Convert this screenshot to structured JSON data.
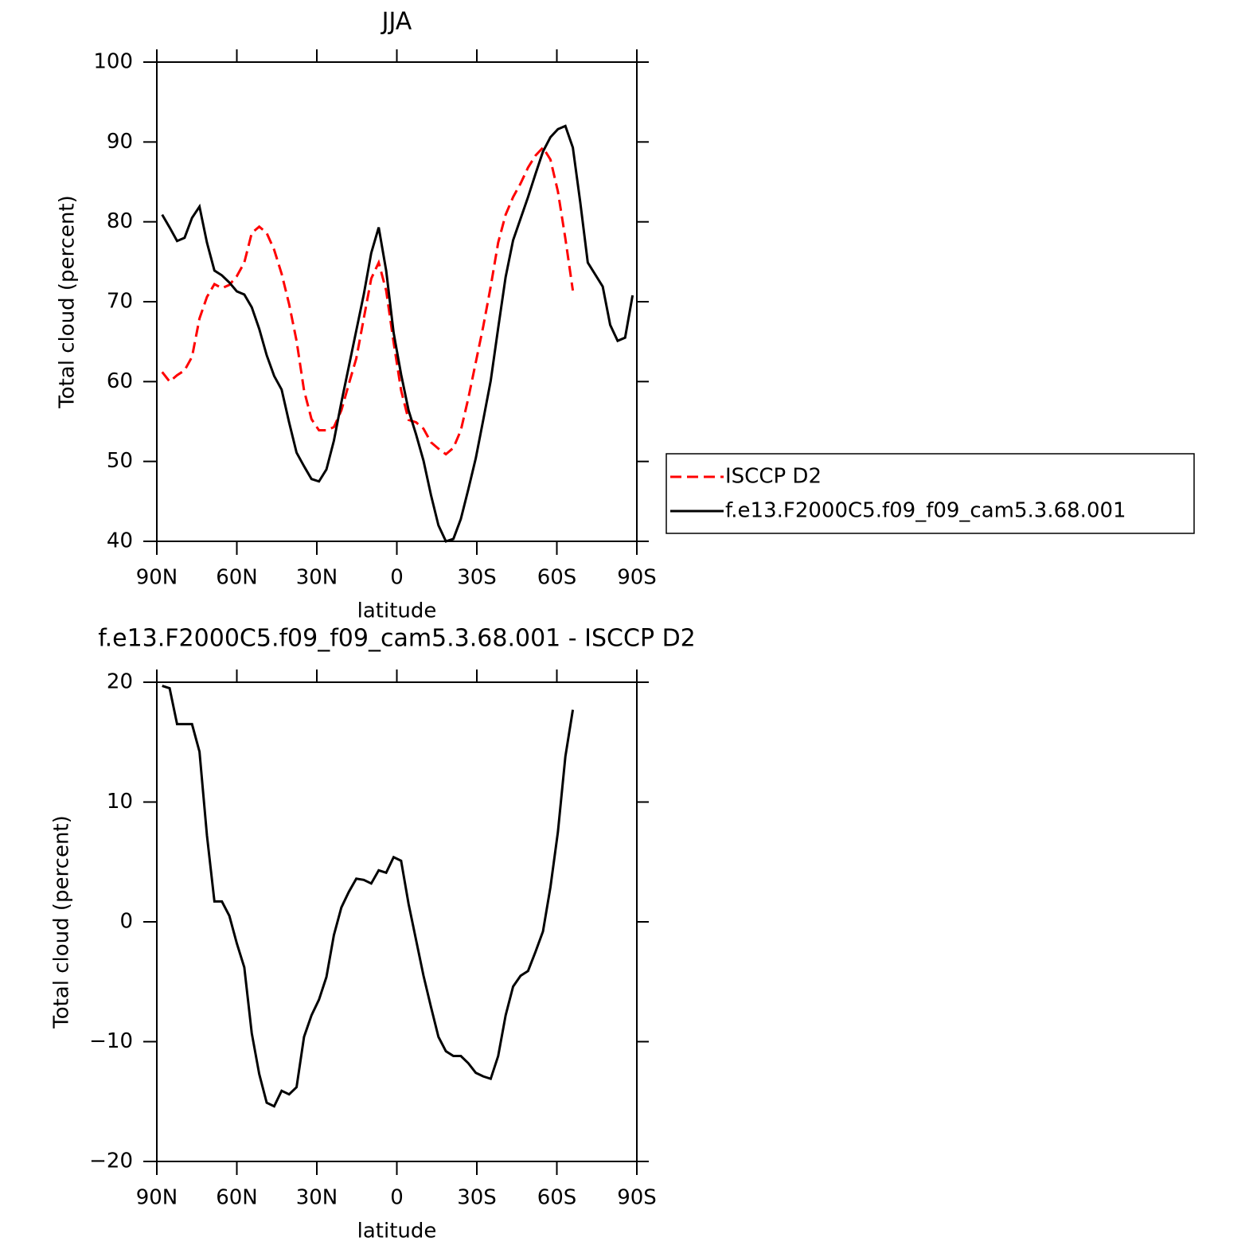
{
  "chart_data": [
    {
      "type": "line",
      "title": "JJA",
      "xlabel": "latitude",
      "ylabel": "Total cloud (percent)",
      "x": [
        88,
        85.2,
        82.4,
        79.6,
        76.8,
        74,
        71.2,
        68.4,
        65.6,
        62.8,
        60,
        57.2,
        54.4,
        51.6,
        48.8,
        46,
        43.2,
        40.4,
        37.6,
        34.8,
        32,
        29.2,
        26.4,
        23.6,
        20.8,
        18,
        15.2,
        12.4,
        9.6,
        6.8,
        4,
        1.2,
        -1.6,
        -4.4,
        -7.2,
        -10,
        -12.8,
        -15.6,
        -18.4,
        -21.2,
        -24,
        -26.8,
        -29.6,
        -32.4,
        -35.2,
        -38,
        -40.8,
        -43.6,
        -46.4,
        -49.2,
        -52,
        -54.8,
        -57.6,
        -60.4,
        -63.2,
        -66,
        -68.8,
        -71.6,
        -74.4,
        -77.2,
        -80,
        -82.8,
        -85.6,
        -88.4
      ],
      "xlim": [
        90,
        -90
      ],
      "xticks": [
        {
          "value": 90,
          "label": "90N"
        },
        {
          "value": 60,
          "label": "60N"
        },
        {
          "value": 30,
          "label": "30N"
        },
        0,
        {
          "value": -30,
          "label": "30S"
        },
        {
          "value": -60,
          "label": "60S"
        },
        {
          "value": -90,
          "label": "90S"
        }
      ],
      "ylim": [
        40,
        100
      ],
      "yticks": [
        40,
        50,
        60,
        70,
        80,
        90,
        100
      ],
      "legend": "right",
      "series": [
        {
          "name": "ISCCP D2",
          "color": "#ff0000",
          "dashed": true,
          "values": [
            61.2,
            60.0,
            60.8,
            61.4,
            63.1,
            67.9,
            70.6,
            72.2,
            71.7,
            72.1,
            73.2,
            74.9,
            78.6,
            79.4,
            78.6,
            76.5,
            73.5,
            69.7,
            65.1,
            58.9,
            55.3,
            53.9,
            53.9,
            54.3,
            56.4,
            59.7,
            62.9,
            67.9,
            72.9,
            74.9,
            71.4,
            64.9,
            58.9,
            55.2,
            54.9,
            54.1,
            52.4,
            51.6,
            50.9,
            51.7,
            53.9,
            57.9,
            62.4,
            66.9,
            71.9,
            77.4,
            80.9,
            83.1,
            84.8,
            86.8,
            88.3,
            89.3,
            87.8,
            83.8,
            77.9,
            71.4,
            null,
            null,
            null,
            null,
            null,
            null,
            null,
            null
          ]
        },
        {
          "name": "f.e13.F2000C5.f09_f09_cam5.3.68.001",
          "color": "#000000",
          "dashed": false,
          "values": [
            80.9,
            79.3,
            77.6,
            78.0,
            80.5,
            81.9,
            77.4,
            73.9,
            73.3,
            72.4,
            71.3,
            70.9,
            69.3,
            66.6,
            63.3,
            60.7,
            59.0,
            54.9,
            51.1,
            49.4,
            47.8,
            47.5,
            49.0,
            52.6,
            57.4,
            61.9,
            66.4,
            70.9,
            76.1,
            79.3,
            73.9,
            66.1,
            60.9,
            56.4,
            53.4,
            50.1,
            45.8,
            42.0,
            40.0,
            40.3,
            42.8,
            46.5,
            50.4,
            55.2,
            60.1,
            66.7,
            73.1,
            77.7,
            80.4,
            83.1,
            86.0,
            88.8,
            90.6,
            91.6,
            92.0,
            89.3,
            82.4,
            74.9,
            73.4,
            71.9,
            67.1,
            65.1,
            65.5,
            70.8
          ]
        }
      ]
    },
    {
      "type": "line",
      "title": "f.e13.F2000C5.f09_f09_cam5.3.68.001 - ISCCP D2",
      "xlabel": "latitude",
      "ylabel": "Total cloud (percent)",
      "x": [
        88,
        85.2,
        82.4,
        79.6,
        76.8,
        74,
        71.2,
        68.4,
        65.6,
        62.8,
        60,
        57.2,
        54.4,
        51.6,
        48.8,
        46,
        43.2,
        40.4,
        37.6,
        34.8,
        32,
        29.2,
        26.4,
        23.6,
        20.8,
        18,
        15.2,
        12.4,
        9.6,
        6.8,
        4,
        1.2,
        -1.6,
        -4.4,
        -7.2,
        -10,
        -12.8,
        -15.6,
        -18.4,
        -21.2,
        -24,
        -26.8,
        -29.6,
        -32.4,
        -35.2,
        -38,
        -40.8,
        -43.6,
        -46.4,
        -49.2,
        -52,
        -54.8,
        -57.6,
        -60.4,
        -63.2,
        -66
      ],
      "xlim": [
        90,
        -90
      ],
      "xticks": [
        {
          "value": 90,
          "label": "90N"
        },
        {
          "value": 60,
          "label": "60N"
        },
        {
          "value": 30,
          "label": "30N"
        },
        0,
        {
          "value": -30,
          "label": "30S"
        },
        {
          "value": -60,
          "label": "60S"
        },
        {
          "value": -90,
          "label": "90S"
        }
      ],
      "ylim": [
        -20,
        20
      ],
      "yticks": [
        {
          "value": -20,
          "label": "−20"
        },
        {
          "value": -10,
          "label": "−10"
        },
        0,
        10,
        20
      ],
      "series": [
        {
          "color": "#000000",
          "dashed": false,
          "values": [
            19.7,
            19.5,
            16.5,
            16.5,
            16.5,
            14.2,
            7.2,
            1.7,
            1.7,
            0.5,
            -1.8,
            -3.8,
            -9.3,
            -12.7,
            -15.1,
            -15.4,
            -14.1,
            -14.4,
            -13.8,
            -9.6,
            -7.8,
            -6.5,
            -4.6,
            -1.1,
            1.2,
            2.5,
            3.6,
            3.5,
            3.2,
            4.3,
            4.1,
            5.4,
            5.1,
            1.5,
            -1.5,
            -4.5,
            -7.1,
            -9.6,
            -10.8,
            -11.2,
            -11.2,
            -11.8,
            -12.6,
            -12.9,
            -13.1,
            -11.2,
            -7.8,
            -5.4,
            -4.5,
            -4.1,
            -2.5,
            -0.8,
            2.9,
            7.5,
            13.8,
            17.7
          ]
        }
      ]
    }
  ]
}
